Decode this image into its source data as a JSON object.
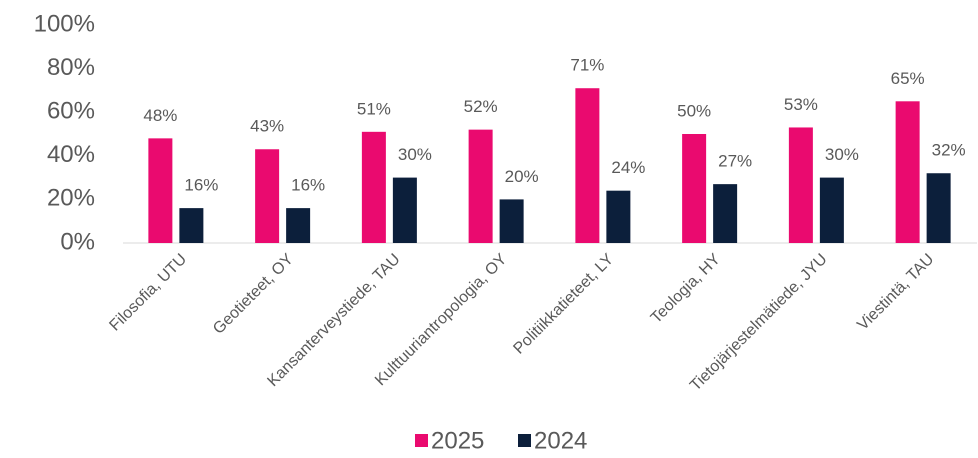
{
  "chart_data": {
    "type": "bar",
    "categories": [
      "Filosofia, UTU",
      "Geotieteet, OY",
      "Kansanterveystiede, TAU",
      "Kulttuuriantropologia, OY",
      "Politiikkatieteet, LY",
      "Teologia, HY",
      "Tietojärjestelmätiede, JYU",
      "Viestintä, TAU"
    ],
    "series": [
      {
        "name": "2025",
        "color": "#ea0a6f",
        "values": [
          48,
          43,
          51,
          52,
          71,
          50,
          53,
          65
        ],
        "value_labels": [
          "48%",
          "43%",
          "51%",
          "52%",
          "71%",
          "50%",
          "53%",
          "65%"
        ]
      },
      {
        "name": "2024",
        "color": "#0c1f3b",
        "values": [
          16,
          16,
          30,
          20,
          24,
          27,
          30,
          32
        ],
        "value_labels": [
          "16%",
          "16%",
          "30%",
          "20%",
          "24%",
          "27%",
          "30%",
          "32%"
        ]
      }
    ],
    "ylim": [
      0,
      100
    ],
    "yticks": [
      {
        "value": 0,
        "label": "0%"
      },
      {
        "value": 20,
        "label": "20%"
      },
      {
        "value": 40,
        "label": "40%"
      },
      {
        "value": 60,
        "label": "60%"
      },
      {
        "value": 80,
        "label": "80%"
      },
      {
        "value": 100,
        "label": "100%"
      }
    ],
    "grid": false,
    "legend": "bottom"
  }
}
